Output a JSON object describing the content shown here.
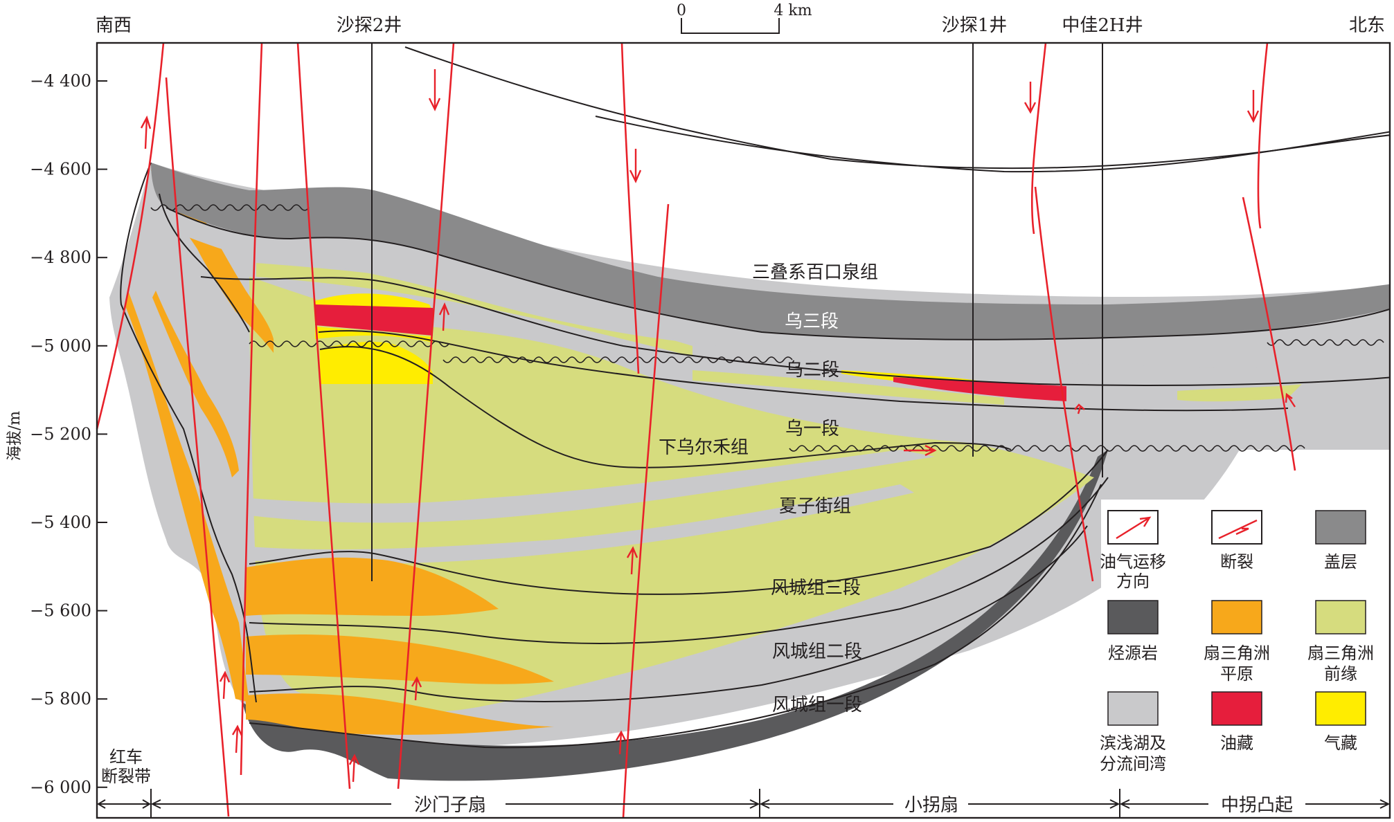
{
  "header": {
    "left_direction": "南西",
    "right_direction": "北东",
    "wells": [
      "沙探2井",
      "沙探1井",
      "中佳2H井"
    ],
    "scale_start": "0",
    "scale_end": "4 km"
  },
  "axis": {
    "ylabel": "海拔/m",
    "ticks": [
      "−4 400",
      "−4 600",
      "−4 800",
      "−5 000",
      "−5 200",
      "−5 400",
      "−5 600",
      "−5 800",
      "−6 000"
    ]
  },
  "strata": {
    "triassic": "三叠系百口泉组",
    "wu3": "乌三段",
    "wu2": "乌二段",
    "wu1": "乌一段",
    "lower_wuerhe": "下乌尔禾组",
    "xiazijie": "夏子街组",
    "fengcheng3": "风城组三段",
    "fengcheng2": "风城组二段",
    "fengcheng1": "风城组一段"
  },
  "zones": {
    "hongche_line1": "红车",
    "hongche_line2": "断裂带",
    "shamenzi": "沙门子扇",
    "xiaoguai": "小拐扇",
    "zhongguai": "中拐凸起"
  },
  "legend": [
    {
      "line1": "油气运移",
      "line2": "方向",
      "icon": "migration-arrow-icon",
      "color": "#e8212a"
    },
    {
      "line1": "断裂",
      "line2": "",
      "icon": "fault-icon",
      "color": "#e8212a"
    },
    {
      "line1": "盖层",
      "line2": "",
      "icon": "cap-rock-swatch",
      "color": "#8a8a8b"
    },
    {
      "line1": "烃源岩",
      "line2": "",
      "icon": "source-rock-swatch",
      "color": "#5a5a5c"
    },
    {
      "line1": "扇三角洲",
      "line2": "平原",
      "icon": "fan-delta-plain-swatch",
      "color": "#f7a81b"
    },
    {
      "line1": "扇三角洲",
      "line2": "前缘",
      "icon": "fan-delta-front-swatch",
      "color": "#d6dc7e"
    },
    {
      "line1": "滨浅湖及",
      "line2": "分流间湾",
      "icon": "shore-lake-swatch",
      "color": "#c9c9cb"
    },
    {
      "line1": "油藏",
      "line2": "",
      "icon": "oil-reservoir-swatch",
      "color": "#e61e3c"
    },
    {
      "line1": "气藏",
      "line2": "",
      "icon": "gas-reservoir-swatch",
      "color": "#ffed00"
    }
  ],
  "colors": {
    "fault": "#e8212a",
    "cap_rock": "#8a8a8b",
    "source_rock": "#5a5a5c",
    "fan_plain": "#f7a81b",
    "fan_front": "#d6dc7e",
    "shore_lake": "#c9c9cb",
    "oil": "#e61e3c",
    "gas": "#ffed00"
  }
}
